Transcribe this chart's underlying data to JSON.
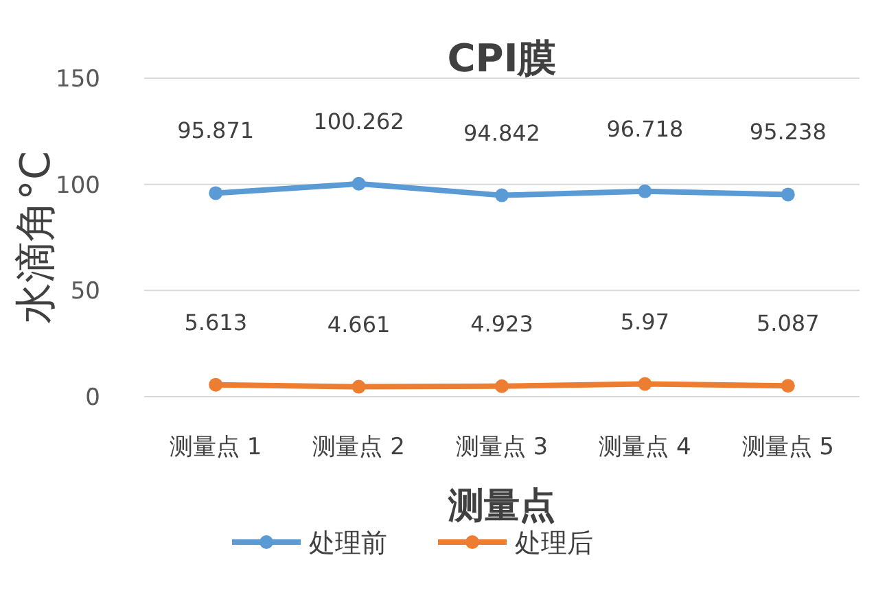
{
  "chart_data": {
    "type": "line",
    "title": "CPI膜",
    "xlabel": "测量点",
    "ylabel": "水滴角°C",
    "categories": [
      "测量点 1",
      "测量点 2",
      "测量点 3",
      "测量点 4",
      "测量点 5"
    ],
    "series": [
      {
        "name": "处理前",
        "color": "#5b9bd5",
        "values": [
          95.871,
          100.262,
          94.842,
          96.718,
          95.238
        ]
      },
      {
        "name": "处理后",
        "color": "#ed7d31",
        "values": [
          5.613,
          4.661,
          4.923,
          5.97,
          5.087
        ]
      }
    ],
    "ylim": [
      0,
      150
    ],
    "yticks": [
      0,
      50,
      100,
      150
    ],
    "grid": "y",
    "legend": "bottom",
    "marker": "circle",
    "line_style": "solid",
    "data_labels": true
  }
}
